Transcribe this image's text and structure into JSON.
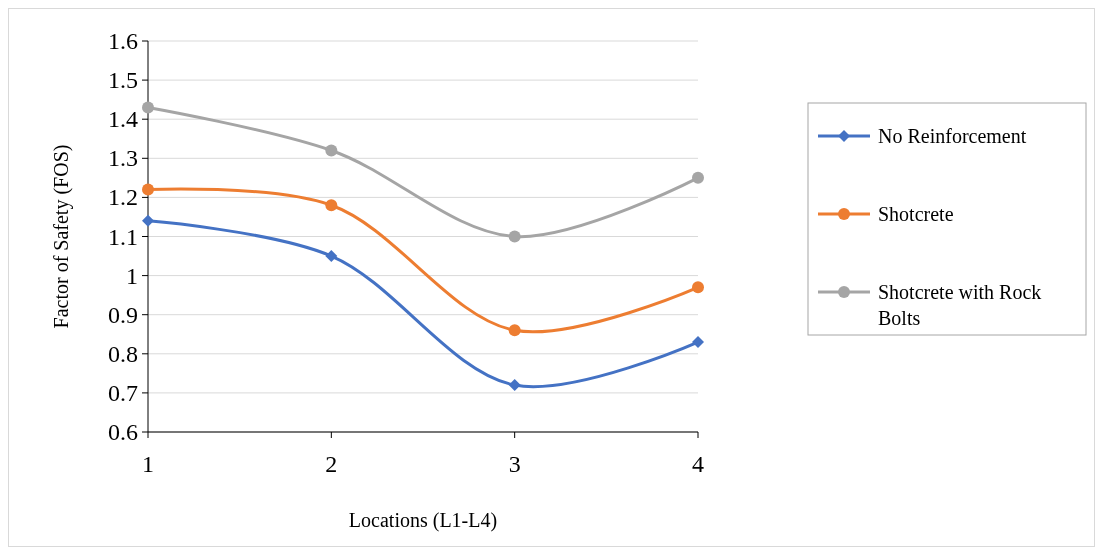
{
  "chart_data": {
    "type": "line",
    "xlabel": "Locations (L1-L4)",
    "ylabel": "Factor of Safety (FOS)",
    "x": [
      1,
      2,
      3,
      4
    ],
    "xlim": [
      1,
      4
    ],
    "xticks": [
      1,
      2,
      3,
      4
    ],
    "ylim": [
      0.6,
      1.6
    ],
    "yticks": [
      0.6,
      0.7,
      0.8,
      0.9,
      1,
      1.1,
      1.2,
      1.3,
      1.4,
      1.5,
      1.6
    ],
    "grid": "y",
    "legend": "right",
    "line_style": "solid",
    "series": [
      {
        "name": "No Reinforcement",
        "color": "#4472c4",
        "marker": "diamond",
        "values": [
          1.14,
          1.05,
          0.72,
          0.83
        ]
      },
      {
        "name": "Shotcrete",
        "color": "#ed7d31",
        "marker": "circle",
        "values": [
          1.22,
          1.18,
          0.86,
          0.97
        ]
      },
      {
        "name": "Shotcrete with Rock Bolts",
        "color": "#a5a5a5",
        "marker": "circle",
        "values": [
          1.43,
          1.32,
          1.1,
          1.25
        ]
      }
    ]
  }
}
